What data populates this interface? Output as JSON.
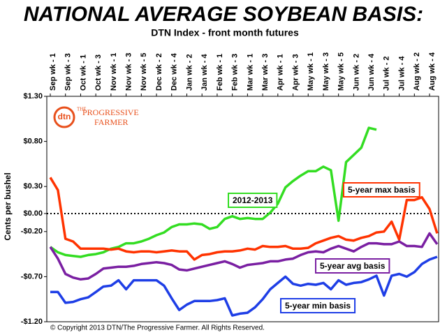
{
  "chart_data": {
    "type": "line",
    "title": "NATIONAL AVERAGE SOYBEAN BASIS:",
    "subtitle": "DTN Index - front month futures",
    "y_label": "Cents per bushel",
    "copyright": "© Copyright 2013 DTN/The Progressive Farmer. All Rights Reserved.",
    "logo": {
      "mark": "dtn",
      "line1": "THE",
      "line2": "PROGRESSIVE",
      "line3": "FARMER"
    },
    "categories": [
      "Sep wk - 1",
      null,
      "Sep wk - 3",
      null,
      "Oct wk - 1",
      null,
      "Oct wk - 3",
      null,
      "Nov wk - 1",
      null,
      "Nov wk - 3",
      null,
      "Nov wk - 5",
      null,
      "Dec wk - 2",
      null,
      "Dec wk - 4",
      null,
      "Jan wk - 2",
      null,
      "Jan wk - 4",
      null,
      "Feb wk - 1",
      null,
      "Feb wk - 3",
      null,
      "Mar wk - 1",
      null,
      "Mar wk - 3",
      null,
      "Apr wk - 1",
      null,
      "Apr wk - 3",
      null,
      "May wk - 1",
      null,
      "May wk - 3",
      null,
      "May wk - 5",
      null,
      "Jun wk - 2",
      null,
      "Jun wk - 4",
      null,
      "Jul wk - 2",
      null,
      "Jul wk - 4",
      null,
      "Aug wk - 2",
      null,
      "Aug wk - 4",
      null
    ],
    "series": [
      {
        "name": "2012-2013",
        "color": "#33dd22",
        "values": [
          -0.37,
          -0.43,
          -0.46,
          -0.47,
          -0.48,
          -0.46,
          -0.45,
          -0.43,
          -0.39,
          -0.37,
          -0.33,
          -0.33,
          -0.31,
          -0.28,
          -0.24,
          -0.21,
          -0.15,
          -0.12,
          -0.12,
          -0.11,
          -0.12,
          -0.17,
          -0.15,
          -0.06,
          -0.03,
          -0.06,
          -0.05,
          -0.06,
          -0.06,
          0.01,
          0.11,
          0.29,
          0.36,
          0.42,
          0.47,
          0.47,
          0.52,
          0.48,
          -0.08,
          0.57,
          0.65,
          0.73,
          0.95,
          0.93,
          null,
          null,
          null,
          null,
          null,
          null,
          null,
          null
        ]
      },
      {
        "name": "5-year max basis",
        "color": "#ff3300",
        "values": [
          0.4,
          0.26,
          -0.28,
          -0.31,
          -0.39,
          -0.39,
          -0.39,
          -0.39,
          -0.4,
          -0.39,
          -0.42,
          -0.43,
          -0.42,
          -0.42,
          -0.43,
          -0.42,
          -0.41,
          -0.42,
          -0.42,
          -0.51,
          -0.46,
          -0.45,
          -0.43,
          -0.42,
          -0.42,
          -0.41,
          -0.39,
          -0.4,
          -0.36,
          -0.37,
          -0.37,
          -0.36,
          -0.39,
          -0.39,
          -0.38,
          -0.33,
          -0.3,
          -0.27,
          -0.25,
          -0.29,
          -0.3,
          -0.27,
          -0.25,
          -0.21,
          -0.2,
          -0.09,
          -0.29,
          0.15,
          0.15,
          0.18,
          0.05,
          -0.22
        ]
      },
      {
        "name": "5-year avg basis",
        "color": "#7a1fa2",
        "values": [
          -0.37,
          -0.5,
          -0.67,
          -0.71,
          -0.73,
          -0.72,
          -0.67,
          -0.61,
          -0.6,
          -0.59,
          -0.59,
          -0.58,
          -0.56,
          -0.55,
          -0.54,
          -0.55,
          -0.57,
          -0.62,
          -0.63,
          -0.61,
          -0.59,
          -0.57,
          -0.55,
          -0.53,
          -0.56,
          -0.6,
          -0.57,
          -0.56,
          -0.55,
          -0.53,
          -0.53,
          -0.51,
          -0.5,
          -0.46,
          -0.43,
          -0.42,
          -0.43,
          -0.39,
          -0.36,
          -0.39,
          -0.42,
          -0.37,
          -0.33,
          -0.33,
          -0.34,
          -0.34,
          -0.31,
          -0.36,
          -0.36,
          -0.37,
          -0.22,
          -0.34
        ]
      },
      {
        "name": "5-year min basis",
        "color": "#1e3ee6",
        "values": [
          -0.87,
          -0.87,
          -0.99,
          -0.98,
          -0.95,
          -0.93,
          -0.87,
          -0.81,
          -0.8,
          -0.74,
          -0.84,
          -0.74,
          -0.74,
          -0.74,
          -0.74,
          -0.8,
          -0.94,
          -1.07,
          -1.01,
          -0.97,
          -0.97,
          -0.97,
          -0.96,
          -0.94,
          -1.13,
          -1.11,
          -1.1,
          -1.04,
          -0.95,
          -0.84,
          -0.77,
          -0.7,
          -0.78,
          -0.8,
          -0.78,
          -0.79,
          -0.77,
          -0.84,
          -0.74,
          -0.79,
          -0.77,
          -0.76,
          -0.73,
          -0.69,
          -0.91,
          -0.69,
          -0.67,
          -0.7,
          -0.65,
          -0.56,
          -0.51,
          -0.48
        ]
      }
    ],
    "ylim": [
      -1.2,
      1.3
    ],
    "yticks": [
      {
        "value": 1.3,
        "label": "$1.30"
      },
      {
        "value": 0.8,
        "label": "$0.80"
      },
      {
        "value": 0.3,
        "label": "$0.30"
      },
      {
        "value": 0,
        "label": "$0.00"
      },
      {
        "value": -0.2,
        "label": "-$0.20"
      },
      {
        "value": -0.7,
        "label": "-$0.70"
      },
      {
        "value": -1.2,
        "label": "-$1.20"
      }
    ],
    "reference_line": 0
  }
}
